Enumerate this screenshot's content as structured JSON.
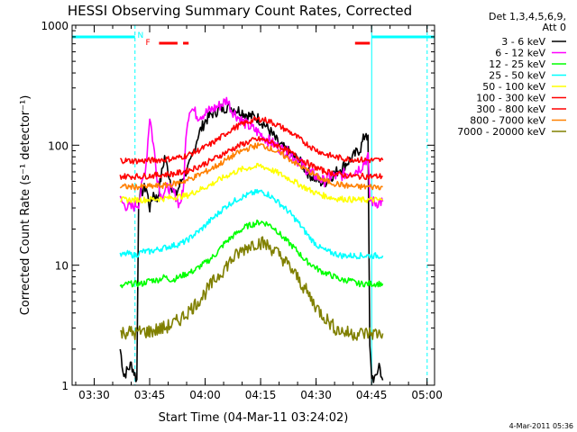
{
  "chart_data": {
    "type": "line",
    "title": "HESSI Observing Summary Count Rates, Corrected",
    "xlabel": "Start Time (04-Mar-11 03:24:02)",
    "ylabel": "Corrected Count Rate (s⁻¹ detector⁻¹)",
    "yscale": "log",
    "ylim": [
      1,
      1000
    ],
    "xlim_minutes_since_0324": [
      0,
      98
    ],
    "x_tick_labels": [
      "03:30",
      "03:45",
      "04:00",
      "04:15",
      "04:30",
      "04:45",
      "05:00"
    ],
    "x_tick_minutes": [
      5.967,
      20.967,
      35.967,
      50.967,
      65.967,
      80.967,
      95.967
    ],
    "y_tick_labels": [
      "1",
      "10",
      "100",
      "1000"
    ],
    "y_tick_values": [
      1,
      10,
      100,
      1000
    ],
    "legend_header": [
      "Det 1,3,4,5,6,9,",
      "Att 0"
    ],
    "legend_position": "right",
    "footer_date": "4-Mar-2011 05:36",
    "flags": [
      {
        "label": "N",
        "color": "#00ffff",
        "x_minutes": 18.5
      },
      {
        "label": "F",
        "color": "#ff0000",
        "x_minutes": 20.5
      }
    ],
    "flare_bars": [
      {
        "color": "#ff0000",
        "x0_minutes": 23.5,
        "x1_minutes": 28.5,
        "dashed": false
      },
      {
        "color": "#ff0000",
        "x0_minutes": 30.0,
        "x1_minutes": 31.5,
        "dashed": false
      },
      {
        "color": "#ff0000",
        "x0_minutes": 76.5,
        "x1_minutes": 80.5,
        "dashed": false
      }
    ],
    "night_segments": [
      {
        "color": "#00ffff",
        "x0_minutes": 0,
        "x1_minutes": 17.0
      },
      {
        "color": "#00ffff",
        "x0_minutes": 81.0,
        "x1_minutes": 98.0
      }
    ],
    "vertical_lines": [
      {
        "color": "#00ffff",
        "x_minutes": 17.0,
        "style": "dashed"
      },
      {
        "color": "#00ffff",
        "x_minutes": 81.0,
        "style": "solid"
      },
      {
        "color": "#00ffff",
        "x_minutes": 96.0,
        "style": "dashed"
      }
    ],
    "series": [
      {
        "name": "3 - 6 keV",
        "color": "#000000",
        "points": [
          [
            13,
            2
          ],
          [
            14,
            1.2
          ],
          [
            16,
            1.5
          ],
          [
            17.5,
            1.1
          ],
          [
            18,
            38
          ],
          [
            20,
            45
          ],
          [
            21,
            30
          ],
          [
            22,
            40
          ],
          [
            23,
            35
          ],
          [
            25,
            80
          ],
          [
            27,
            45
          ],
          [
            28,
            38
          ],
          [
            30,
            55
          ],
          [
            32,
            70
          ],
          [
            34,
            120
          ],
          [
            36,
            160
          ],
          [
            38,
            185
          ],
          [
            40,
            200
          ],
          [
            42,
            210
          ],
          [
            44,
            200
          ],
          [
            46,
            190
          ],
          [
            48,
            175
          ],
          [
            50,
            170
          ],
          [
            52,
            150
          ],
          [
            54,
            125
          ],
          [
            56,
            100
          ],
          [
            58,
            90
          ],
          [
            60,
            80
          ],
          [
            62,
            70
          ],
          [
            64,
            58
          ],
          [
            66,
            52
          ],
          [
            68,
            48
          ],
          [
            70,
            55
          ],
          [
            72,
            62
          ],
          [
            74,
            70
          ],
          [
            76,
            80
          ],
          [
            78,
            95
          ],
          [
            79.5,
            130
          ],
          [
            80,
            110
          ],
          [
            80.5,
            2
          ],
          [
            81,
            1.2
          ],
          [
            82,
            1.1
          ],
          [
            83,
            1.5
          ],
          [
            84,
            1.1
          ]
        ]
      },
      {
        "name": "6 - 12 keV",
        "color": "#ff00ff",
        "points": [
          [
            13,
            35
          ],
          [
            14,
            32
          ],
          [
            16,
            30
          ],
          [
            18,
            33
          ],
          [
            20,
            70
          ],
          [
            21,
            175
          ],
          [
            22,
            100
          ],
          [
            23,
            55
          ],
          [
            24,
            38
          ],
          [
            26,
            45
          ],
          [
            28,
            38
          ],
          [
            29,
            32
          ],
          [
            30,
            40
          ],
          [
            31,
            150
          ],
          [
            32,
            210
          ],
          [
            34,
            175
          ],
          [
            36,
            185
          ],
          [
            38,
            200
          ],
          [
            40,
            215
          ],
          [
            42,
            240
          ],
          [
            43,
            200
          ],
          [
            45,
            170
          ],
          [
            47,
            150
          ],
          [
            50,
            130
          ],
          [
            53,
            110
          ],
          [
            56,
            95
          ],
          [
            59,
            85
          ],
          [
            62,
            70
          ],
          [
            64,
            60
          ],
          [
            66,
            55
          ],
          [
            68,
            50
          ],
          [
            70,
            55
          ],
          [
            72,
            55
          ],
          [
            74,
            58
          ],
          [
            76,
            60
          ],
          [
            78,
            65
          ],
          [
            80,
            80
          ],
          [
            80.5,
            35
          ],
          [
            82,
            33
          ],
          [
            84,
            34
          ]
        ]
      },
      {
        "name": "12 - 25 keV",
        "color": "#00ff00",
        "points": [
          [
            13,
            6.5
          ],
          [
            15,
            7
          ],
          [
            17,
            7
          ],
          [
            19,
            7
          ],
          [
            21,
            7.5
          ],
          [
            23,
            7.5
          ],
          [
            25,
            8
          ],
          [
            27,
            7.5
          ],
          [
            29,
            8
          ],
          [
            31,
            8.5
          ],
          [
            33,
            9
          ],
          [
            35,
            10
          ],
          [
            37,
            11
          ],
          [
            39,
            12.5
          ],
          [
            41,
            15
          ],
          [
            43,
            17
          ],
          [
            45,
            19
          ],
          [
            47,
            21
          ],
          [
            49,
            22
          ],
          [
            51,
            23
          ],
          [
            53,
            22
          ],
          [
            55,
            20
          ],
          [
            57,
            17
          ],
          [
            59,
            15
          ],
          [
            61,
            13
          ],
          [
            63,
            11
          ],
          [
            65,
            10
          ],
          [
            67,
            9
          ],
          [
            69,
            8.5
          ],
          [
            71,
            8
          ],
          [
            73,
            7.5
          ],
          [
            75,
            7.5
          ],
          [
            77,
            7
          ],
          [
            79,
            7
          ],
          [
            81,
            7
          ],
          [
            84,
            7
          ]
        ]
      },
      {
        "name": "25 - 50 keV",
        "color": "#00ffff",
        "points": [
          [
            13,
            12
          ],
          [
            15,
            12.5
          ],
          [
            17,
            12
          ],
          [
            19,
            13
          ],
          [
            21,
            13
          ],
          [
            23,
            13.5
          ],
          [
            25,
            14
          ],
          [
            27,
            14.5
          ],
          [
            29,
            15
          ],
          [
            31,
            16
          ],
          [
            33,
            18
          ],
          [
            35,
            20
          ],
          [
            37,
            23
          ],
          [
            39,
            26
          ],
          [
            41,
            30
          ],
          [
            43,
            33
          ],
          [
            45,
            36
          ],
          [
            47,
            38
          ],
          [
            49,
            40
          ],
          [
            51,
            41
          ],
          [
            53,
            39
          ],
          [
            55,
            35
          ],
          [
            57,
            31
          ],
          [
            59,
            27
          ],
          [
            61,
            23
          ],
          [
            63,
            19
          ],
          [
            65,
            16
          ],
          [
            67,
            14
          ],
          [
            69,
            13
          ],
          [
            71,
            12.5
          ],
          [
            73,
            12
          ],
          [
            75,
            12
          ],
          [
            77,
            12
          ],
          [
            79,
            12
          ],
          [
            81,
            12
          ],
          [
            84,
            12
          ]
        ]
      },
      {
        "name": "50 - 100 keV",
        "color": "#ffff00",
        "points": [
          [
            13,
            35
          ],
          [
            16,
            35
          ],
          [
            19,
            35
          ],
          [
            22,
            35.5
          ],
          [
            25,
            36
          ],
          [
            28,
            37
          ],
          [
            31,
            38
          ],
          [
            34,
            42
          ],
          [
            37,
            46
          ],
          [
            40,
            52
          ],
          [
            43,
            58
          ],
          [
            46,
            63
          ],
          [
            49,
            66
          ],
          [
            51,
            67
          ],
          [
            53,
            64
          ],
          [
            56,
            58
          ],
          [
            59,
            52
          ],
          [
            62,
            46
          ],
          [
            65,
            41
          ],
          [
            68,
            38
          ],
          [
            71,
            36
          ],
          [
            74,
            35.5
          ],
          [
            77,
            35
          ],
          [
            80,
            35
          ],
          [
            84,
            35
          ]
        ]
      },
      {
        "name": "100 - 300 keV",
        "color": "#ff0000",
        "points": [
          [
            13,
            75
          ],
          [
            16,
            74
          ],
          [
            19,
            74
          ],
          [
            22,
            75
          ],
          [
            25,
            76
          ],
          [
            28,
            78
          ],
          [
            31,
            82
          ],
          [
            34,
            90
          ],
          [
            37,
            100
          ],
          [
            40,
            115
          ],
          [
            43,
            135
          ],
          [
            46,
            150
          ],
          [
            49,
            162
          ],
          [
            51,
            165
          ],
          [
            53,
            160
          ],
          [
            56,
            145
          ],
          [
            59,
            128
          ],
          [
            62,
            110
          ],
          [
            65,
            95
          ],
          [
            68,
            85
          ],
          [
            71,
            80
          ],
          [
            74,
            77
          ],
          [
            77,
            76
          ],
          [
            80,
            75
          ],
          [
            84,
            75
          ]
        ]
      },
      {
        "name": "300 - 800 keV",
        "color": "#ff0000",
        "points": [
          [
            13,
            55
          ],
          [
            16,
            55
          ],
          [
            19,
            55
          ],
          [
            22,
            56
          ],
          [
            25,
            57
          ],
          [
            28,
            58
          ],
          [
            31,
            61
          ],
          [
            34,
            66
          ],
          [
            37,
            73
          ],
          [
            40,
            82
          ],
          [
            43,
            92
          ],
          [
            46,
            102
          ],
          [
            49,
            110
          ],
          [
            51,
            112
          ],
          [
            53,
            108
          ],
          [
            56,
            98
          ],
          [
            59,
            87
          ],
          [
            62,
            76
          ],
          [
            65,
            67
          ],
          [
            68,
            61
          ],
          [
            71,
            58
          ],
          [
            74,
            56
          ],
          [
            77,
            55
          ],
          [
            80,
            55
          ],
          [
            84,
            55
          ]
        ]
      },
      {
        "name": "800 - 7000 keV",
        "color": "#ff8000",
        "points": [
          [
            13,
            45
          ],
          [
            16,
            45
          ],
          [
            19,
            45
          ],
          [
            22,
            45.5
          ],
          [
            25,
            46
          ],
          [
            28,
            48
          ],
          [
            31,
            51
          ],
          [
            34,
            56
          ],
          [
            37,
            62
          ],
          [
            40,
            70
          ],
          [
            43,
            80
          ],
          [
            46,
            90
          ],
          [
            49,
            98
          ],
          [
            51,
            100
          ],
          [
            53,
            96
          ],
          [
            56,
            86
          ],
          [
            59,
            76
          ],
          [
            62,
            66
          ],
          [
            65,
            58
          ],
          [
            68,
            51
          ],
          [
            71,
            48
          ],
          [
            74,
            46
          ],
          [
            77,
            45
          ],
          [
            80,
            45
          ],
          [
            84,
            45
          ]
        ]
      },
      {
        "name": "7000 - 20000 keV",
        "color": "#808000",
        "points": [
          [
            13,
            2.7
          ],
          [
            15,
            2.8
          ],
          [
            17,
            2.7
          ],
          [
            19,
            2.8
          ],
          [
            21,
            2.8
          ],
          [
            23,
            2.9
          ],
          [
            25,
            3
          ],
          [
            27,
            3.2
          ],
          [
            29,
            3.5
          ],
          [
            31,
            4
          ],
          [
            33,
            4.6
          ],
          [
            35,
            5.4
          ],
          [
            37,
            6.5
          ],
          [
            39,
            7.8
          ],
          [
            41,
            9.3
          ],
          [
            43,
            11
          ],
          [
            45,
            12.5
          ],
          [
            47,
            14
          ],
          [
            49,
            15.2
          ],
          [
            51,
            15.5
          ],
          [
            53,
            14.5
          ],
          [
            55,
            13
          ],
          [
            57,
            11.3
          ],
          [
            59,
            9.5
          ],
          [
            61,
            7.8
          ],
          [
            63,
            6.3
          ],
          [
            65,
            5
          ],
          [
            67,
            4.1
          ],
          [
            69,
            3.5
          ],
          [
            71,
            3
          ],
          [
            73,
            2.8
          ],
          [
            75,
            2.7
          ],
          [
            77,
            2.7
          ],
          [
            79,
            2.7
          ],
          [
            81,
            2.7
          ],
          [
            84,
            2.7
          ]
        ]
      }
    ]
  }
}
